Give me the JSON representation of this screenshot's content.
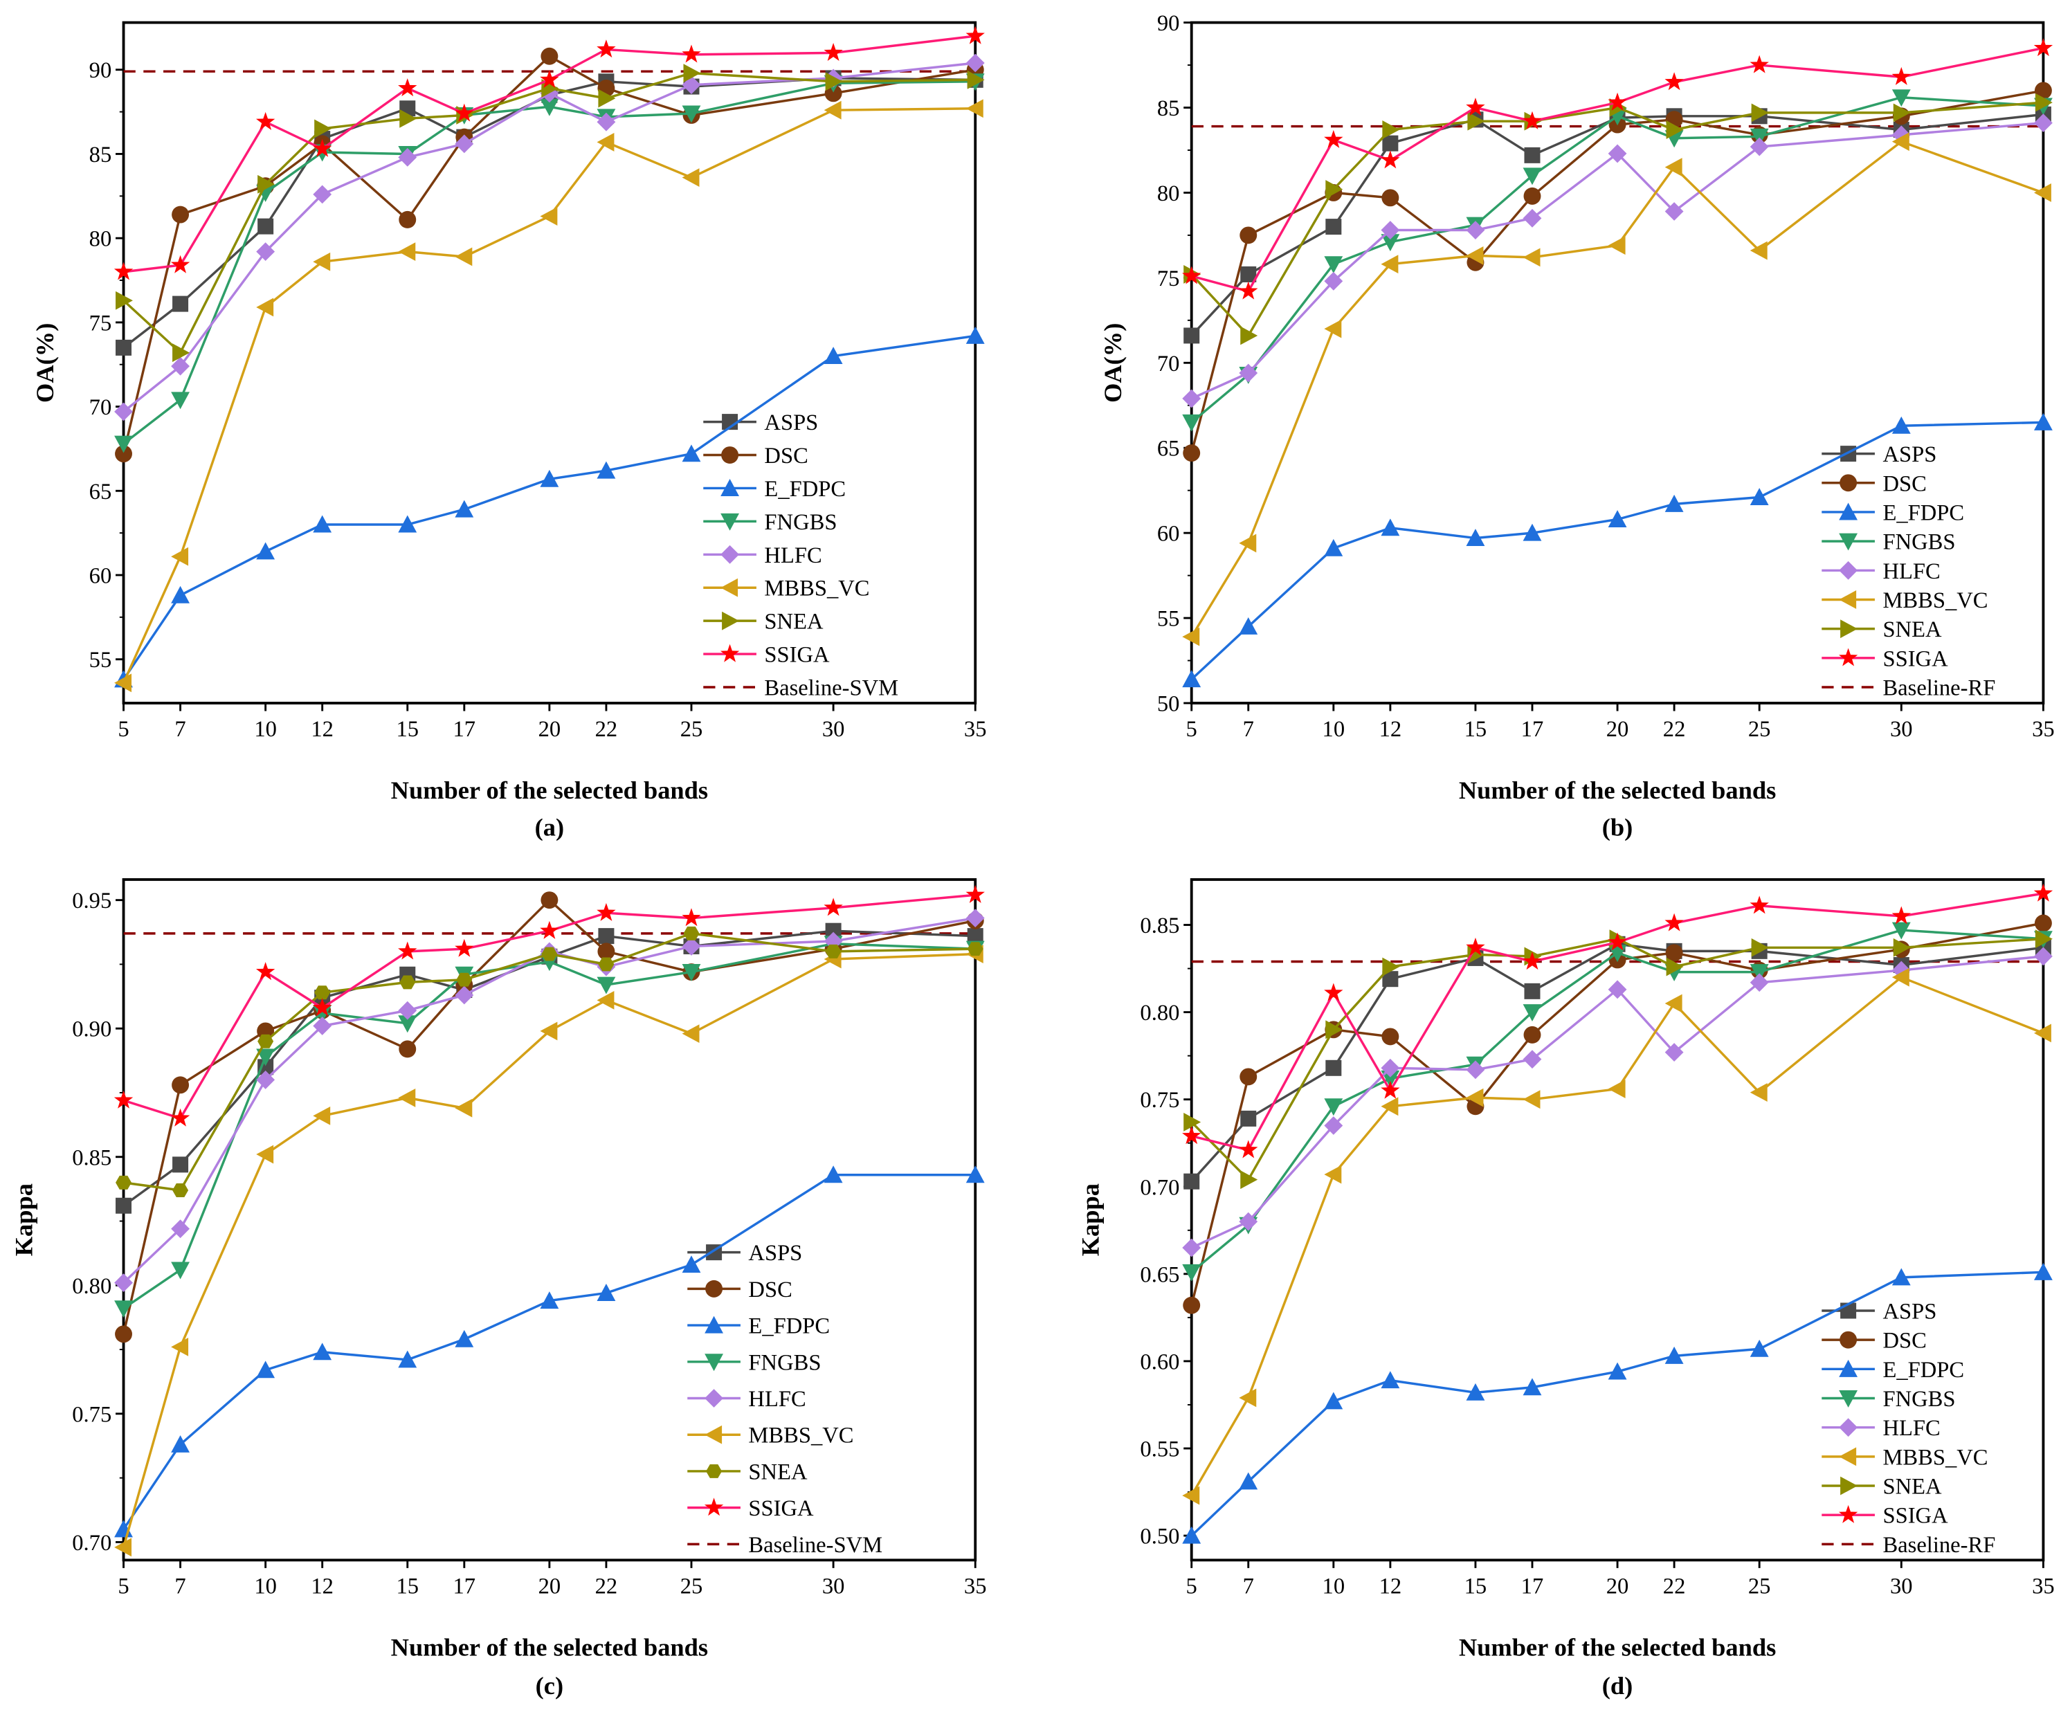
{
  "chart_data": [
    {
      "type": "line",
      "panel_label": "(a)",
      "xlabel": "Number of the selected bands",
      "ylabel": "OA(%)",
      "x": [
        5,
        7,
        10,
        12,
        15,
        17,
        20,
        22,
        25,
        30,
        35
      ],
      "x_tick_labels": [
        "5",
        "7",
        "10",
        "12",
        "15",
        "17",
        "20",
        "22",
        "25",
        "30",
        "35"
      ],
      "xlim": [
        5,
        35
      ],
      "ylim": [
        52.4,
        92.8
      ],
      "y_ticks": [
        55,
        60,
        65,
        70,
        75,
        80,
        85,
        90
      ],
      "y_tick_labels": [
        "55",
        "60",
        "65",
        "70",
        "75",
        "80",
        "85",
        "90"
      ],
      "grid": false,
      "legend_placement": "bottom-right",
      "series": [
        {
          "name": "ASPS",
          "values": [
            73.5,
            76.1,
            80.7,
            85.9,
            87.7,
            86.0,
            88.5,
            89.3,
            89.0,
            89.5,
            89.4
          ]
        },
        {
          "name": "DSC",
          "values": [
            67.2,
            81.4,
            83.1,
            85.6,
            81.1,
            86.0,
            90.8,
            88.9,
            87.3,
            88.6,
            90.0
          ]
        },
        {
          "name": "E_FDPC",
          "values": [
            53.8,
            58.8,
            61.4,
            63.0,
            63.0,
            63.9,
            65.7,
            66.2,
            67.2,
            73.0,
            74.2
          ]
        },
        {
          "name": "FNGBS",
          "values": [
            67.8,
            70.4,
            82.7,
            85.1,
            85.0,
            87.3,
            87.8,
            87.2,
            87.4,
            89.2,
            89.3
          ]
        },
        {
          "name": "HLFC",
          "values": [
            69.7,
            72.4,
            79.2,
            82.6,
            84.8,
            85.6,
            88.6,
            86.9,
            89.1,
            89.5,
            90.4
          ]
        },
        {
          "name": "MBBS_VC",
          "values": [
            53.6,
            61.1,
            75.9,
            78.6,
            79.2,
            78.9,
            81.3,
            85.7,
            83.6,
            87.6,
            87.7
          ]
        },
        {
          "name": "SNEA",
          "values": [
            76.3,
            73.2,
            83.2,
            86.5,
            87.1,
            87.3,
            88.9,
            88.3,
            89.8,
            89.3,
            89.4
          ]
        },
        {
          "name": "SSIGA",
          "values": [
            78.0,
            78.4,
            86.9,
            85.3,
            88.9,
            87.4,
            89.4,
            91.2,
            90.9,
            91.0,
            92.0
          ]
        }
      ],
      "baseline": {
        "name": "Baseline-SVM",
        "value": 89.9
      }
    },
    {
      "type": "line",
      "panel_label": "(b)",
      "xlabel": "Number of the selected bands",
      "ylabel": "OA(%)",
      "x": [
        5,
        7,
        10,
        12,
        15,
        17,
        20,
        22,
        25,
        30,
        35
      ],
      "x_tick_labels": [
        "5",
        "7",
        "10",
        "12",
        "15",
        "17",
        "20",
        "22",
        "25",
        "30",
        "35"
      ],
      "xlim": [
        5,
        35
      ],
      "ylim": [
        50,
        90
      ],
      "y_ticks": [
        50,
        55,
        60,
        65,
        70,
        75,
        80,
        85,
        90
      ],
      "y_tick_labels": [
        "50",
        "55",
        "60",
        "65",
        "70",
        "75",
        "80",
        "85",
        "90"
      ],
      "grid": false,
      "legend_placement": "bottom-right",
      "series": [
        {
          "name": "ASPS",
          "values": [
            71.6,
            75.2,
            78.0,
            82.9,
            84.3,
            82.2,
            84.4,
            84.5,
            84.5,
            83.7,
            84.6
          ]
        },
        {
          "name": "DSC",
          "values": [
            64.7,
            77.5,
            80.0,
            79.7,
            75.9,
            79.8,
            84.0,
            84.3,
            83.4,
            84.5,
            86.0
          ]
        },
        {
          "name": "E_FDPC",
          "values": [
            51.4,
            54.5,
            59.1,
            60.3,
            59.7,
            60.0,
            60.8,
            61.7,
            62.1,
            66.3,
            66.5
          ]
        },
        {
          "name": "FNGBS",
          "values": [
            66.5,
            69.3,
            75.8,
            77.1,
            78.1,
            81.0,
            84.5,
            83.2,
            83.3,
            85.6,
            85.1
          ]
        },
        {
          "name": "HLFC",
          "values": [
            67.9,
            69.4,
            74.8,
            77.8,
            77.8,
            78.5,
            82.3,
            78.9,
            82.7,
            83.4,
            84.1
          ]
        },
        {
          "name": "MBBS_VC",
          "values": [
            53.9,
            59.4,
            72.0,
            75.8,
            76.3,
            76.2,
            76.9,
            81.5,
            76.6,
            83.0,
            80.0
          ]
        },
        {
          "name": "SNEA",
          "values": [
            75.2,
            71.6,
            80.2,
            83.7,
            84.2,
            84.2,
            85.0,
            83.7,
            84.7,
            84.7,
            85.3
          ]
        },
        {
          "name": "SSIGA",
          "values": [
            75.1,
            74.2,
            83.1,
            81.9,
            85.0,
            84.2,
            85.3,
            86.5,
            87.5,
            86.8,
            88.5
          ]
        }
      ],
      "baseline": {
        "name": "Baseline-RF",
        "value": 83.9
      }
    },
    {
      "type": "line",
      "panel_label": "(c)",
      "xlabel": "Number of the selected bands",
      "ylabel": "Kappa",
      "x": [
        5,
        7,
        10,
        12,
        15,
        17,
        20,
        22,
        25,
        30,
        35
      ],
      "x_tick_labels": [
        "5",
        "7",
        "10",
        "12",
        "15",
        "17",
        "20",
        "22",
        "25",
        "30",
        "35"
      ],
      "xlim": [
        5,
        35
      ],
      "ylim": [
        0.693,
        0.958
      ],
      "y_ticks": [
        0.7,
        0.75,
        0.8,
        0.85,
        0.9,
        0.95
      ],
      "y_tick_labels": [
        "0.70",
        "0.75",
        "0.80",
        "0.85",
        "0.90",
        "0.95"
      ],
      "grid": false,
      "legend_placement": "bottom-right",
      "series": [
        {
          "name": "ASPS",
          "values": [
            0.831,
            0.847,
            0.885,
            0.912,
            0.921,
            0.915,
            0.928,
            0.936,
            0.932,
            0.938,
            0.936
          ]
        },
        {
          "name": "DSC",
          "values": [
            0.781,
            0.878,
            0.899,
            0.907,
            0.892,
            0.917,
            0.95,
            0.93,
            0.922,
            0.931,
            0.942
          ]
        },
        {
          "name": "E_FDPC",
          "values": [
            0.705,
            0.738,
            0.767,
            0.774,
            0.771,
            0.779,
            0.794,
            0.797,
            0.808,
            0.843,
            0.843
          ]
        },
        {
          "name": "FNGBS",
          "values": [
            0.791,
            0.806,
            0.889,
            0.906,
            0.902,
            0.921,
            0.926,
            0.917,
            0.922,
            0.933,
            0.931
          ]
        },
        {
          "name": "HLFC",
          "values": [
            0.801,
            0.822,
            0.88,
            0.901,
            0.907,
            0.913,
            0.93,
            0.924,
            0.932,
            0.934,
            0.943
          ]
        },
        {
          "name": "MBBS_VC",
          "values": [
            0.698,
            0.776,
            0.851,
            0.866,
            0.873,
            0.869,
            0.899,
            0.911,
            0.898,
            0.927,
            0.929
          ]
        },
        {
          "name": "SNEA",
          "values": [
            0.84,
            0.837,
            0.895,
            0.914,
            0.918,
            0.919,
            0.929,
            0.925,
            0.937,
            0.93,
            0.931
          ]
        },
        {
          "name": "SSIGA",
          "values": [
            0.872,
            0.865,
            0.922,
            0.908,
            0.93,
            0.931,
            0.938,
            0.945,
            0.943,
            0.947,
            0.952
          ]
        }
      ],
      "baseline": {
        "name": "Baseline-SVM",
        "value": 0.937
      }
    },
    {
      "type": "line",
      "panel_label": "(d)",
      "xlabel": "Number of the selected bands",
      "ylabel": "Kappa",
      "x": [
        5,
        7,
        10,
        12,
        15,
        17,
        20,
        22,
        25,
        30,
        35
      ],
      "x_tick_labels": [
        "5",
        "7",
        "10",
        "12",
        "15",
        "17",
        "20",
        "22",
        "25",
        "30",
        "35"
      ],
      "xlim": [
        5,
        35
      ],
      "ylim": [
        0.486,
        0.876
      ],
      "y_ticks": [
        0.5,
        0.55,
        0.6,
        0.65,
        0.7,
        0.75,
        0.8,
        0.85
      ],
      "y_tick_labels": [
        "0.50",
        "0.55",
        "0.60",
        "0.65",
        "0.70",
        "0.75",
        "0.80",
        "0.85"
      ],
      "grid": false,
      "legend_placement": "bottom-right",
      "series": [
        {
          "name": "ASPS",
          "values": [
            0.703,
            0.739,
            0.768,
            0.819,
            0.831,
            0.812,
            0.839,
            0.835,
            0.835,
            0.827,
            0.837
          ]
        },
        {
          "name": "DSC",
          "values": [
            0.632,
            0.763,
            0.79,
            0.786,
            0.746,
            0.787,
            0.83,
            0.834,
            0.824,
            0.836,
            0.851
          ]
        },
        {
          "name": "E_FDPC",
          "values": [
            0.5,
            0.531,
            0.577,
            0.589,
            0.582,
            0.585,
            0.594,
            0.603,
            0.607,
            0.648,
            0.651
          ]
        },
        {
          "name": "FNGBS",
          "values": [
            0.651,
            0.678,
            0.746,
            0.762,
            0.77,
            0.8,
            0.834,
            0.823,
            0.823,
            0.847,
            0.842
          ]
        },
        {
          "name": "HLFC",
          "values": [
            0.665,
            0.68,
            0.735,
            0.768,
            0.767,
            0.773,
            0.813,
            0.777,
            0.817,
            0.824,
            0.832
          ]
        },
        {
          "name": "MBBS_VC",
          "values": [
            0.523,
            0.579,
            0.707,
            0.746,
            0.751,
            0.75,
            0.756,
            0.805,
            0.754,
            0.82,
            0.788
          ]
        },
        {
          "name": "SNEA",
          "values": [
            0.737,
            0.704,
            0.79,
            0.826,
            0.833,
            0.832,
            0.842,
            0.826,
            0.837,
            0.837,
            0.842
          ]
        },
        {
          "name": "SSIGA",
          "values": [
            0.729,
            0.721,
            0.811,
            0.755,
            0.837,
            0.829,
            0.84,
            0.851,
            0.861,
            0.855,
            0.868
          ]
        }
      ],
      "baseline": {
        "name": "Baseline-RF",
        "value": 0.829
      }
    }
  ],
  "styles": {
    "ASPS": {
      "color": "#4a4a4a",
      "marker": "square"
    },
    "DSC": {
      "color": "#7a3a0e",
      "marker": "circle"
    },
    "E_FDPC": {
      "color": "#1f6fdc",
      "marker": "triangle-up"
    },
    "FNGBS": {
      "color": "#2e9e68",
      "marker": "triangle-down"
    },
    "HLFC": {
      "color": "#b07fe0",
      "marker": "diamond"
    },
    "MBBS_VC": {
      "color": "#d4a017",
      "marker": "triangle-left"
    },
    "SNEA": {
      "color": "#8c8c00",
      "marker": "triangle-right"
    },
    "SSIGA": {
      "color": "#ff1a75",
      "marker": "star",
      "marker_color": "#ff0000"
    },
    "baseline": {
      "color": "#8b0000"
    }
  }
}
